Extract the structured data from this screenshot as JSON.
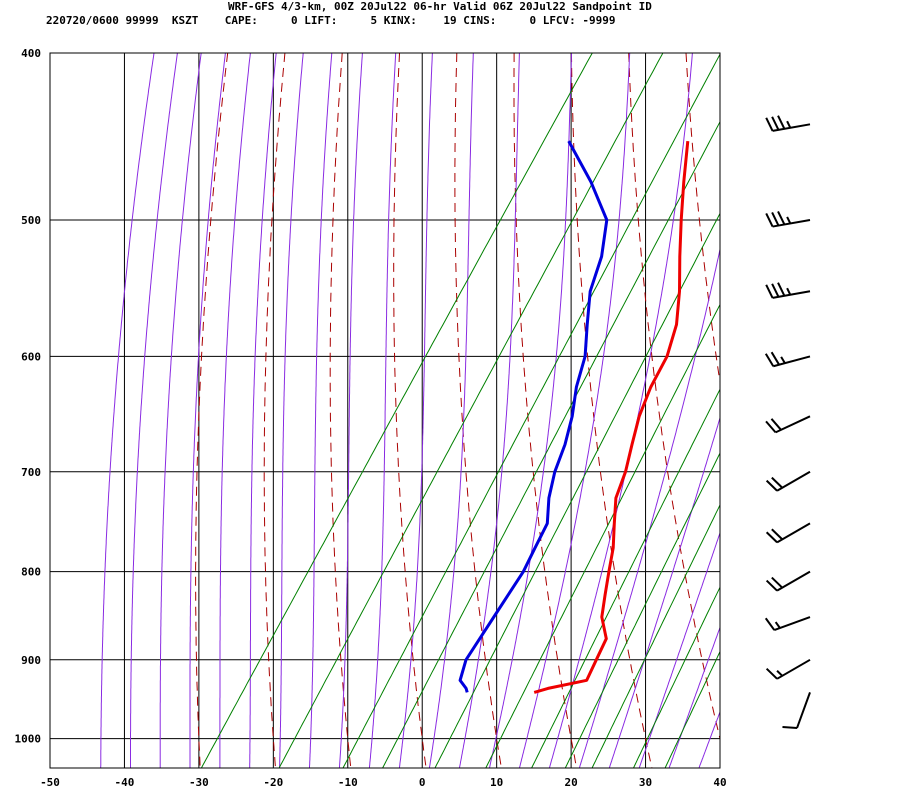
{
  "header": {
    "title": "WRF-GFS 4/3-km, 00Z 20Jul22 06-hr Valid 06Z 20Jul22 Sandpoint ID",
    "info": "220720/0600 99999  KSZT    CAPE:     0 LIFT:     5 KINX:    19 CINS:     0 LFCV: -9999"
  },
  "colors": {
    "temperature": "#ee0000",
    "dewpoint": "#0000dd",
    "isotherm": "#000000",
    "dry_adiabat": "#aa0000",
    "moist_adiabat": "#8a2be2",
    "mixing_ratio": "#008000",
    "wind_barb": "#000000"
  },
  "chart_data": {
    "type": "line",
    "title": "",
    "xlabel": "",
    "ylabel": "",
    "x_axis_units": "temperature (C), skewed",
    "y_axis_units": "pressure (hPa), log scale, inverted",
    "xlim": [
      -50,
      40
    ],
    "ylim": [
      1040,
      400
    ],
    "x_ticks": [
      -50,
      -40,
      -30,
      -20,
      -10,
      0,
      10,
      20,
      30,
      40
    ],
    "y_ticks": [
      1000,
      900,
      800,
      700,
      600,
      500,
      400
    ],
    "grid": true,
    "series": [
      {
        "role": "temperature",
        "points": [
          [
            -16.5,
            450
          ],
          [
            -13.5,
            475
          ],
          [
            -10.5,
            500
          ],
          [
            -7.5,
            525
          ],
          [
            -4.5,
            550
          ],
          [
            -2.0,
            575
          ],
          [
            -0.5,
            600
          ],
          [
            0.0,
            625
          ],
          [
            1.0,
            650
          ],
          [
            2.5,
            675
          ],
          [
            4.0,
            700
          ],
          [
            5.0,
            725
          ],
          [
            7.0,
            750
          ],
          [
            9.0,
            775
          ],
          [
            10.5,
            800
          ],
          [
            12.0,
            825
          ],
          [
            13.5,
            850
          ],
          [
            16.0,
            875
          ],
          [
            16.5,
            900
          ],
          [
            17.0,
            925
          ],
          [
            12.5,
            935
          ],
          [
            11.0,
            940
          ]
        ]
      },
      {
        "role": "dewpoint",
        "points": [
          [
            -32.5,
            450
          ],
          [
            -26.0,
            475
          ],
          [
            -20.5,
            500
          ],
          [
            -18.0,
            525
          ],
          [
            -16.5,
            550
          ],
          [
            -14.0,
            575
          ],
          [
            -11.5,
            600
          ],
          [
            -10.0,
            625
          ],
          [
            -8.0,
            650
          ],
          [
            -6.5,
            675
          ],
          [
            -5.5,
            700
          ],
          [
            -4.0,
            725
          ],
          [
            -2.0,
            750
          ],
          [
            -1.5,
            775
          ],
          [
            -1.0,
            800
          ],
          [
            -1.0,
            825
          ],
          [
            -1.0,
            850
          ],
          [
            -1.0,
            875
          ],
          [
            -1.0,
            900
          ],
          [
            0.0,
            925
          ],
          [
            1.5,
            935
          ],
          [
            2.0,
            940
          ]
        ]
      }
    ],
    "wind_barbs": [
      {
        "p": 440,
        "dir": 260,
        "kt": 35
      },
      {
        "p": 500,
        "dir": 260,
        "kt": 35
      },
      {
        "p": 550,
        "dir": 260,
        "kt": 35
      },
      {
        "p": 600,
        "dir": 255,
        "kt": 25
      },
      {
        "p": 650,
        "dir": 245,
        "kt": 20
      },
      {
        "p": 700,
        "dir": 240,
        "kt": 20
      },
      {
        "p": 750,
        "dir": 240,
        "kt": 20
      },
      {
        "p": 800,
        "dir": 240,
        "kt": 20
      },
      {
        "p": 850,
        "dir": 250,
        "kt": 15
      },
      {
        "p": 900,
        "dir": 240,
        "kt": 15
      },
      {
        "p": 940,
        "dir": 200,
        "kt": 10
      }
    ]
  }
}
